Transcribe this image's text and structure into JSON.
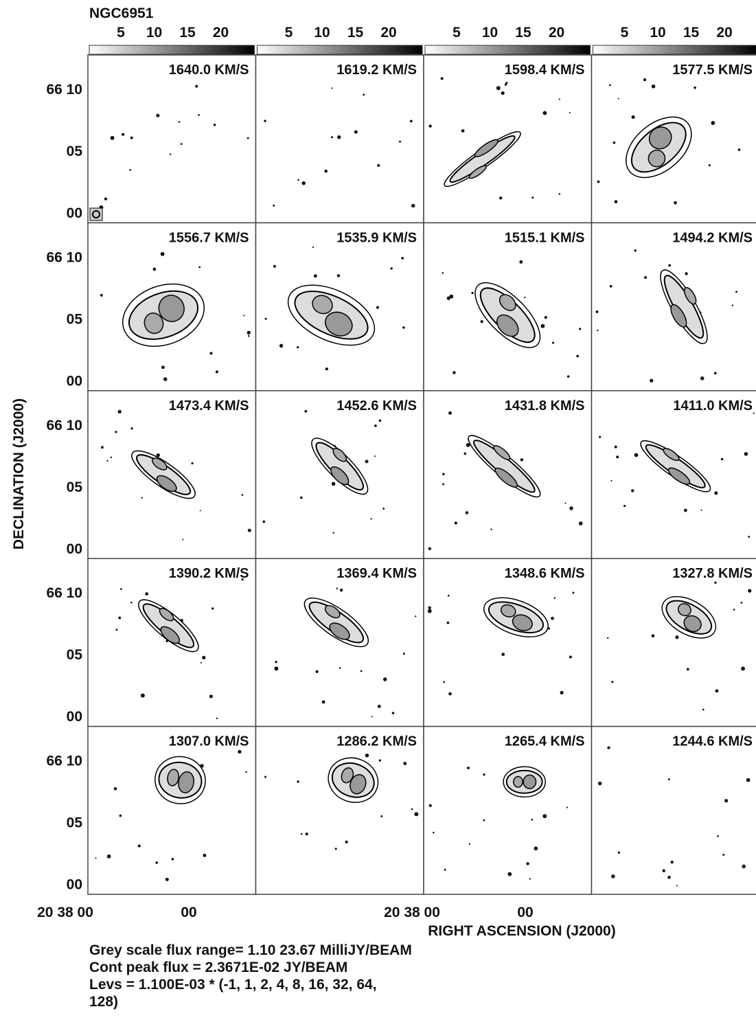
{
  "title": "NGC6951",
  "colorbar": {
    "ticks": [
      "5",
      "10",
      "15",
      "20"
    ]
  },
  "panels": [
    {
      "label": "1640.0 KM/S"
    },
    {
      "label": "1619.2 KM/S"
    },
    {
      "label": "1598.4 KM/S"
    },
    {
      "label": "1577.5 KM/S"
    },
    {
      "label": "1556.7 KM/S"
    },
    {
      "label": "1535.9 KM/S"
    },
    {
      "label": "1515.1 KM/S"
    },
    {
      "label": "1494.2 KM/S"
    },
    {
      "label": "1473.4 KM/S"
    },
    {
      "label": "1452.6 KM/S"
    },
    {
      "label": "1431.8 KM/S"
    },
    {
      "label": "1411.0 KM/S"
    },
    {
      "label": "1390.2 KM/S"
    },
    {
      "label": "1369.4 KM/S"
    },
    {
      "label": "1348.6 KM/S"
    },
    {
      "label": "1327.8 KM/S"
    },
    {
      "label": "1307.0 KM/S"
    },
    {
      "label": "1286.2 KM/S"
    },
    {
      "label": "1265.4 KM/S"
    },
    {
      "label": "1244.6 KM/S"
    }
  ],
  "y_axis": {
    "label": "DECLINATION (J2000)",
    "ticks": [
      "66 10",
      "05",
      "00"
    ]
  },
  "x_axis": {
    "label": "RIGHT ASCENSION (J2000)",
    "ticks": [
      "20 38 00",
      "00"
    ]
  },
  "notes": [
    "Grey scale flux range= 1.10 23.67 MilliJY/BEAM",
    "Cont peak flux =  2.3671E-02 JY/BEAM",
    "Levs = 1.100E-03 * (-1, 1, 2, 4, 8, 16, 32, 64,",
    "128)"
  ]
}
